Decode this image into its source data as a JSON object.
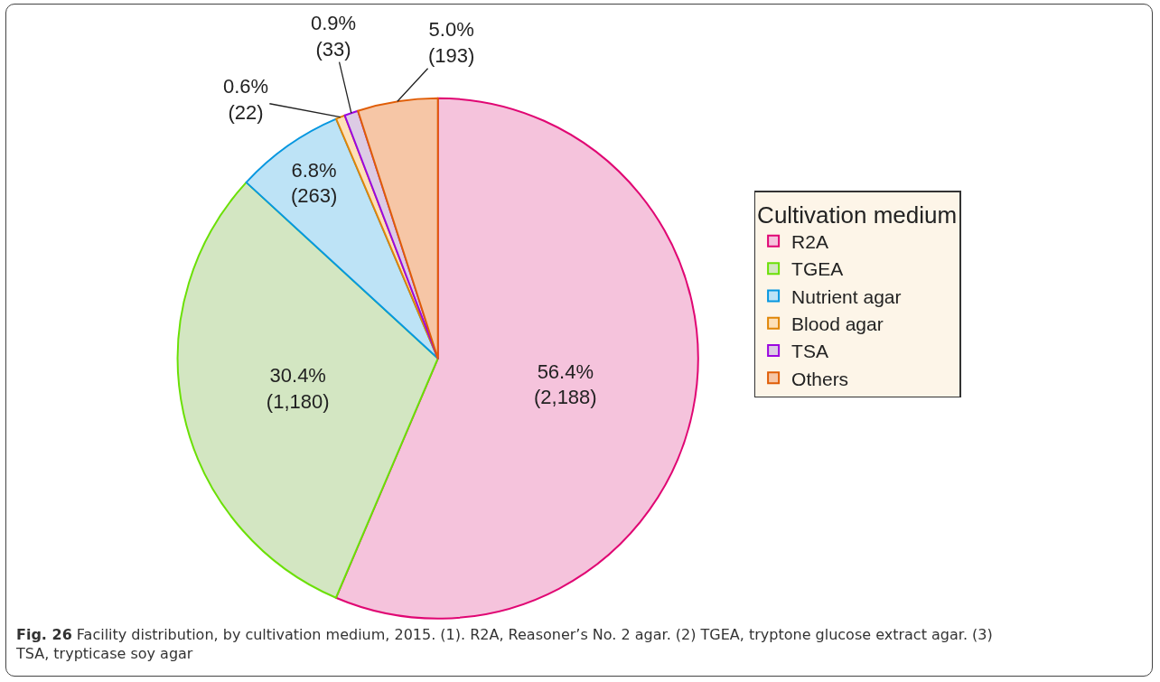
{
  "chart_data": {
    "type": "pie",
    "categories": [
      "R2A",
      "TGEA",
      "Nutrient agar",
      "Blood agar",
      "TSA",
      "Others"
    ],
    "values": [
      2188,
      1180,
      263,
      22,
      33,
      193
    ],
    "colors": [
      "#f5c3dc",
      "#d3e6c2",
      "#bde3f6",
      "#fde0b8",
      "#dccbe4",
      "#f6c6a6"
    ],
    "value_labels": [
      "56.4%\n(2,188)",
      "30.4%\n(1,180)",
      "6.8%\n(263)",
      "0.6%\n(22)",
      "0.9%\n(33)",
      "5.0%\n(193)"
    ],
    "legend_title": "Cultivation medium",
    "legend": "right",
    "annotations": [
      "Fig. 26 Facility distribution, by cultivation medium, 2015. (1). R2A, Reasoner’s No. 2 agar. (2) TGEA, tryptone glucose extract agar. (3) TSA, trypticase soy agar"
    ]
  }
}
